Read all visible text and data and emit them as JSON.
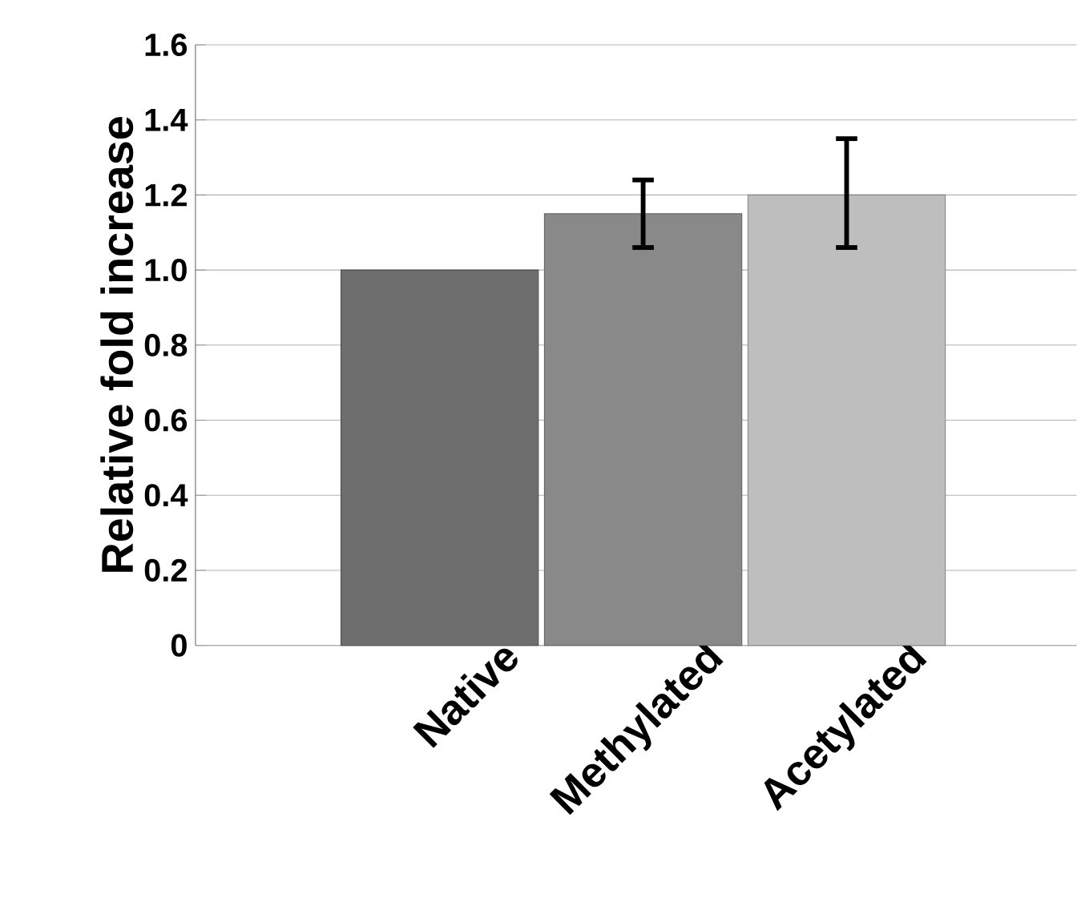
{
  "chart_data": {
    "type": "bar",
    "ylabel": "Relative fold increase",
    "categories": [
      "Native",
      "Methylated",
      "Acetylated"
    ],
    "values": [
      1.0,
      1.15,
      1.2
    ],
    "colors": [
      "#6e6e6e",
      "#898989",
      "#bebebe"
    ],
    "errors": [
      null,
      [
        1.06,
        1.24
      ],
      [
        1.06,
        1.35
      ]
    ],
    "ylim": [
      0,
      1.6
    ],
    "yticks": [
      0,
      {
        "value": 0.2,
        "label": "0.2"
      },
      {
        "value": 0.4,
        "label": "0.4"
      },
      {
        "value": 0.6,
        "label": "0.6"
      },
      {
        "value": 0.8,
        "label": "0.8"
      },
      {
        "value": 1.0,
        "label": "1.0"
      },
      {
        "value": 1.2,
        "label": "1.2"
      },
      {
        "value": 1.4,
        "label": "1.4"
      },
      {
        "value": 1.6,
        "label": "1.6"
      }
    ],
    "grid": "y"
  }
}
